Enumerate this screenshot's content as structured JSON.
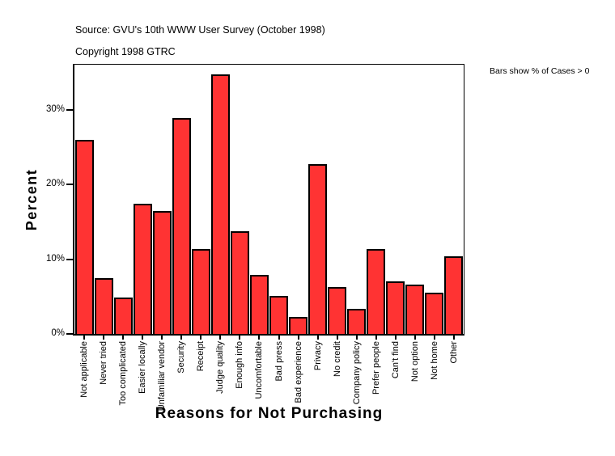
{
  "header": {
    "source": "Source: GVU's 10th WWW User Survey (October 1998)",
    "copyright": "Copyright 1998 GTRC"
  },
  "note": "Bars show % of Cases > 0",
  "chart_data": {
    "type": "bar",
    "title": "",
    "xlabel": "Reasons for Not Purchasing",
    "ylabel": "Percent",
    "categories": [
      "Not applicable",
      "Never tried",
      "Too complicated",
      "Easier locally",
      "Unfamiliar vendor",
      "Security",
      "Receipt",
      "Judge quality",
      "Enough info",
      "Uncomfortable",
      "Bad press",
      "Bad experience",
      "Privacy",
      "No credit",
      "Company policy",
      "Prefer people",
      "Can't find",
      "Not option",
      "Not home",
      "Other"
    ],
    "values": [
      25.9,
      7.5,
      4.9,
      17.4,
      16.4,
      28.9,
      11.4,
      34.7,
      13.7,
      7.9,
      5.1,
      2.3,
      22.7,
      6.3,
      3.4,
      11.4,
      7.0,
      6.6,
      5.5,
      10.4
    ],
    "yticks": [
      0,
      10,
      20,
      30
    ],
    "ytick_labels": [
      "0%",
      "10%",
      "20%",
      "30%"
    ],
    "ylim": [
      0,
      36
    ],
    "grid": false,
    "legend": "none",
    "bar_color": "#FF3333",
    "bar_border_color": "#000000"
  }
}
